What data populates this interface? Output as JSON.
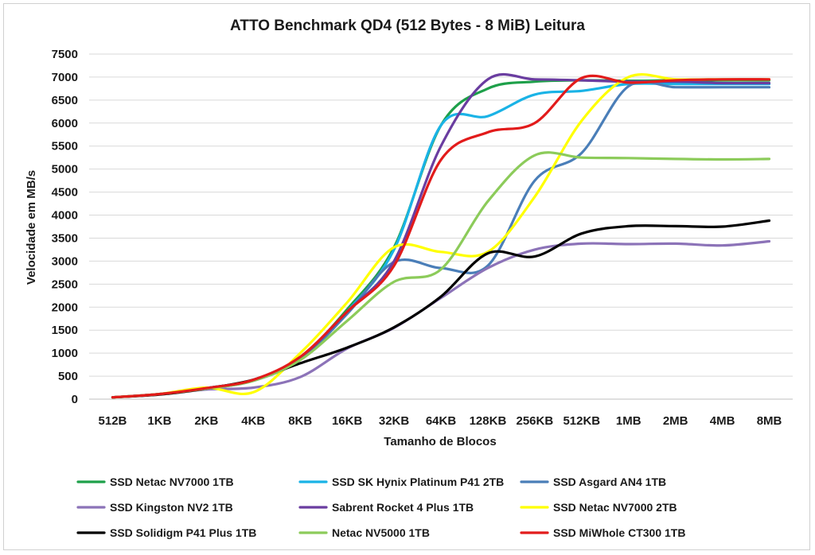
{
  "chart_data": {
    "type": "line",
    "title": "ATTO Benchmark QD4 (512 Bytes - 8 MiB) Leitura",
    "xlabel": "Tamanho de Blocos",
    "ylabel": "Velocidade em MB/s",
    "ylim": [
      0,
      7500
    ],
    "yticks": [
      "0",
      "500",
      "1000",
      "1500",
      "2000",
      "2500",
      "3000",
      "3500",
      "4000",
      "4500",
      "5000",
      "5500",
      "6000",
      "6500",
      "7000",
      "7500"
    ],
    "grid": true,
    "legend_position": "bottom",
    "categories": [
      "512B",
      "1KB",
      "2KB",
      "4KB",
      "8KB",
      "16KB",
      "32KB",
      "64KB",
      "128KB",
      "256KB",
      "512KB",
      "1MB",
      "2MB",
      "4MB",
      "8MB"
    ],
    "series": [
      {
        "name": "SSD Netac NV7000 1TB",
        "color": "#1ea04a",
        "values": [
          40,
          110,
          240,
          420,
          900,
          1950,
          3300,
          5950,
          6750,
          6900,
          6930,
          6920,
          6930,
          6930,
          6930
        ]
      },
      {
        "name": "SSD SK Hynix Platinum P41 2TB",
        "color": "#1ab3e6",
        "values": [
          40,
          110,
          240,
          420,
          880,
          1900,
          3250,
          5950,
          6150,
          6620,
          6700,
          6850,
          6850,
          6850,
          6850
        ]
      },
      {
        "name": "SSD Asgard AN4 1TB",
        "color": "#4a7eb8",
        "values": [
          40,
          110,
          230,
          400,
          860,
          1850,
          2980,
          2850,
          2900,
          4750,
          5350,
          6800,
          6780,
          6780,
          6780
        ]
      },
      {
        "name": "SSD Kingston NV2 1TB",
        "color": "#8c73b8",
        "values": [
          40,
          100,
          210,
          250,
          480,
          1100,
          1550,
          2200,
          2850,
          3250,
          3380,
          3370,
          3380,
          3340,
          3430
        ]
      },
      {
        "name": "Sabrent Rocket 4 Plus 1TB",
        "color": "#6a3da0",
        "values": [
          40,
          110,
          240,
          420,
          900,
          1900,
          3000,
          5500,
          6950,
          6950,
          6930,
          6900,
          6900,
          6870,
          6870
        ]
      },
      {
        "name": "SSD Netac NV7000 2TB",
        "color": "#ffff00",
        "values": [
          40,
          110,
          250,
          150,
          1000,
          2100,
          3300,
          3200,
          3200,
          4400,
          6050,
          7000,
          6950,
          6950,
          6950
        ]
      },
      {
        "name": "SSD Solidigm P41 Plus 1TB",
        "color": "#000000",
        "values": [
          40,
          100,
          230,
          420,
          780,
          1120,
          1560,
          2230,
          3170,
          3100,
          3600,
          3760,
          3760,
          3750,
          3880
        ]
      },
      {
        "name": "Netac NV5000 1TB",
        "color": "#8ccb5a",
        "values": [
          40,
          110,
          230,
          400,
          850,
          1700,
          2550,
          2820,
          4300,
          5300,
          5250,
          5240,
          5220,
          5210,
          5220
        ]
      },
      {
        "name": "SSD MiWhole CT300 1TB",
        "color": "#e21b1b",
        "values": [
          40,
          110,
          240,
          420,
          920,
          1900,
          2900,
          5200,
          5800,
          6000,
          6980,
          6880,
          6930,
          6950,
          6950
        ]
      }
    ]
  }
}
